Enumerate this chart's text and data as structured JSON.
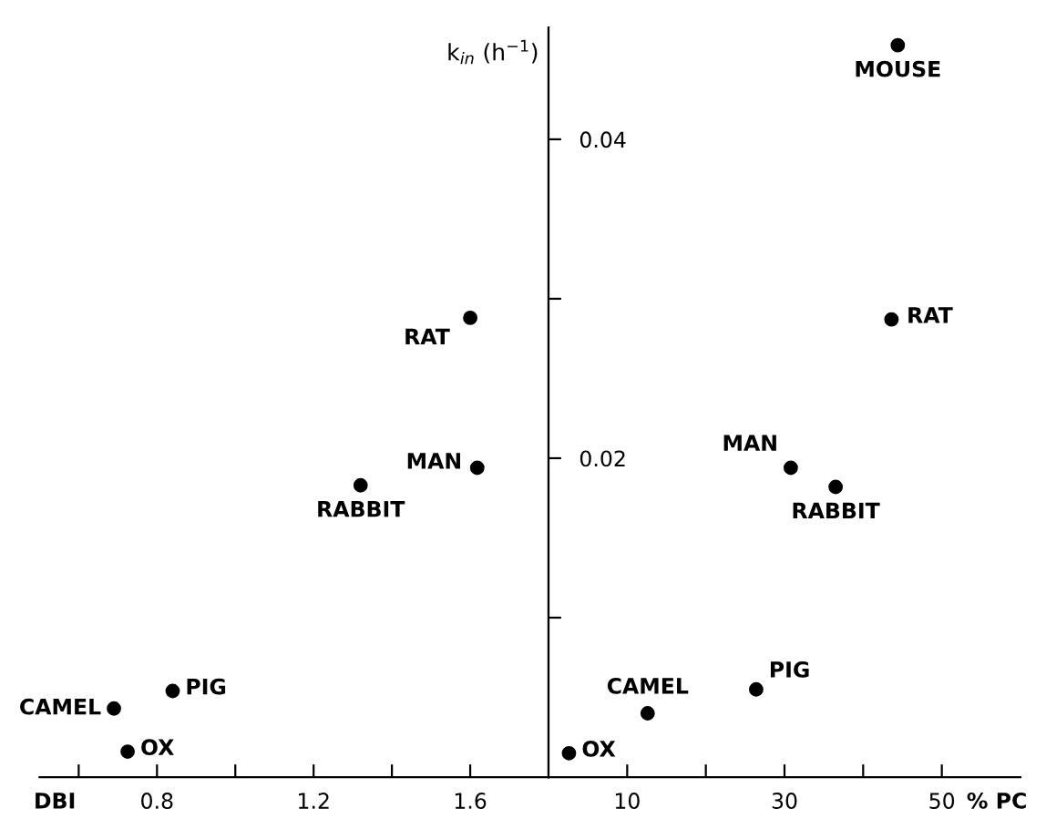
{
  "chart_data": [
    {
      "type": "scatter",
      "xlabel": "DBI",
      "x": [
        1.6,
        1.618,
        1.32,
        0.84,
        0.69,
        0.725
      ],
      "values": [
        0.0288,
        0.0194,
        0.0183,
        0.0054,
        0.0043,
        0.0016
      ],
      "color": "#000000",
      "marker": "circle",
      "xlim": [
        0.5,
        1.8
      ],
      "xticks": [
        {
          "value": 0.6,
          "label": null
        },
        0.8,
        {
          "value": 1.0,
          "label": null
        },
        1.2,
        {
          "value": 1.4,
          "label": null
        },
        1.6
      ],
      "ylim": [
        0,
        0.047
      ],
      "tick_labels": "x",
      "grid": false,
      "legend": false,
      "annotations": [
        {
          "text": "RAT",
          "x": 1.6,
          "y": 0.0288
        },
        {
          "text": "MAN",
          "x": 1.618,
          "y": 0.0194
        },
        {
          "text": "RABBIT",
          "x": 1.32,
          "y": 0.0183
        },
        {
          "text": "PIG",
          "x": 0.84,
          "y": 0.0054
        },
        {
          "text": "CAMEL",
          "x": 0.69,
          "y": 0.0043
        },
        {
          "text": "OX",
          "x": 0.725,
          "y": 0.0016
        }
      ]
    },
    {
      "type": "scatter",
      "xlabel": "% PC",
      "ylabel": "k$_{in}$ (h$^{−1}$)",
      "x": [
        44.4,
        43.6,
        30.8,
        36.5,
        26.4,
        12.6,
        2.6
      ],
      "values": [
        0.0459,
        0.0287,
        0.0194,
        0.0182,
        0.0055,
        0.004,
        0.0015
      ],
      "color": "#000000",
      "marker": "circle",
      "xlim": [
        0,
        60
      ],
      "xticks": [
        10,
        {
          "value": 20,
          "label": null
        },
        30,
        {
          "value": 40,
          "label": null
        },
        50
      ],
      "ylim": [
        0,
        0.047
      ],
      "yticks": [
        {
          "value": 0.01,
          "label": null
        },
        0.02,
        {
          "value": 0.03,
          "label": null
        },
        0.04
      ],
      "grid": false,
      "legend": false,
      "annotations": [
        {
          "text": "MOUSE",
          "x": 44.4,
          "y": 0.0459
        },
        {
          "text": "RAT",
          "x": 43.6,
          "y": 0.0287
        },
        {
          "text": "MAN",
          "x": 30.8,
          "y": 0.0194
        },
        {
          "text": "RABBIT",
          "x": 36.5,
          "y": 0.0182
        },
        {
          "text": "PIG",
          "x": 26.4,
          "y": 0.0055
        },
        {
          "text": "CAMEL",
          "x": 12.6,
          "y": 0.004
        },
        {
          "text": "OX",
          "x": 2.6,
          "y": 0.0015
        }
      ]
    }
  ]
}
